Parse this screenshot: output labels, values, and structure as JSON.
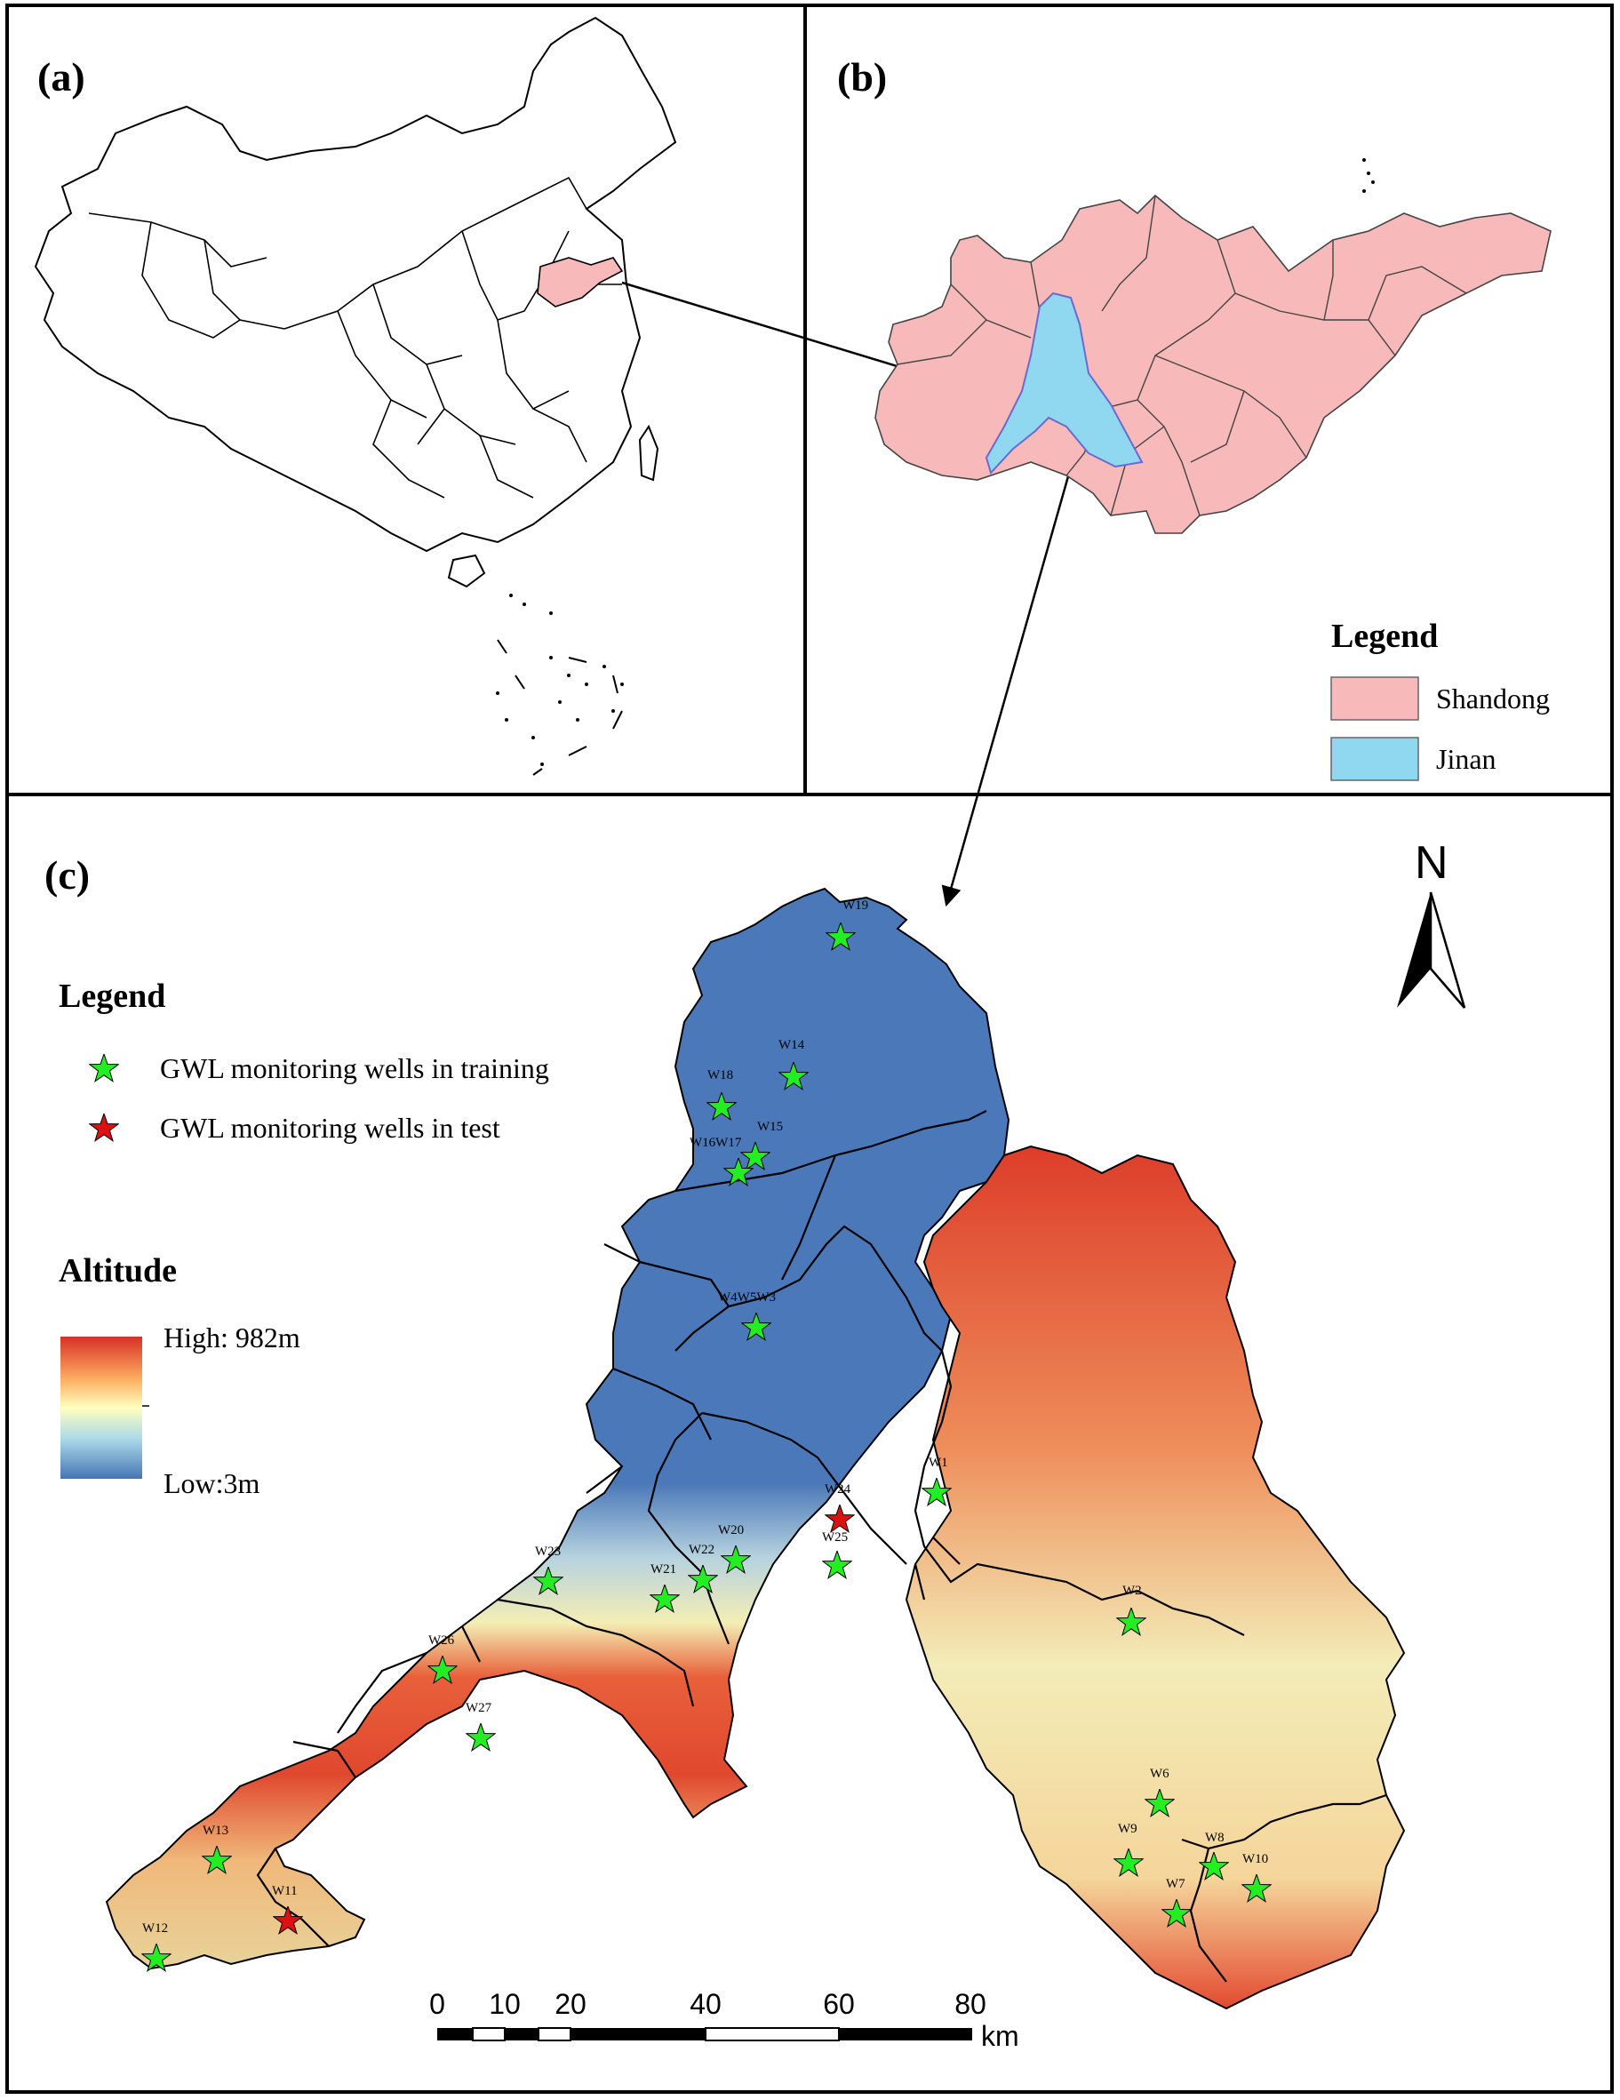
{
  "panels": {
    "a": {
      "label": "(a)"
    },
    "b": {
      "label": "(b)"
    },
    "c": {
      "label": "(c)"
    }
  },
  "legend_b": {
    "title": "Legend",
    "items": [
      {
        "label": "Shandong",
        "color": "#f7b9b9"
      },
      {
        "label": "Jinan",
        "color": "#8fd8f0"
      }
    ]
  },
  "legend_c": {
    "title": "Legend",
    "items": [
      {
        "label": "GWL monitoring wells in training",
        "color": "#22ee22"
      },
      {
        "label": "GWL monitoring wells  in test",
        "color": "#dd1111"
      }
    ]
  },
  "altitude": {
    "title": "Altitude",
    "high_label": "High: 982m",
    "low_label": "Low:3m",
    "colors": [
      "#d73027",
      "#fee08b",
      "#ffffbf",
      "#abd9e9",
      "#4575b4"
    ]
  },
  "north_arrow": {
    "label": "N"
  },
  "scale_bar": {
    "ticks": [
      "0",
      "10",
      "20",
      "40",
      "60",
      "80"
    ],
    "unit": "km"
  },
  "wells": [
    {
      "id": "W19",
      "label": "W19",
      "type": "training"
    },
    {
      "id": "W14",
      "label": "W14",
      "type": "training"
    },
    {
      "id": "W18",
      "label": "W18",
      "type": "training"
    },
    {
      "id": "W15",
      "label": "W15",
      "type": "training"
    },
    {
      "id": "W16W17",
      "label": "W16W17",
      "type": "training"
    },
    {
      "id": "W4W5W3",
      "label": "W4W5W3",
      "type": "training"
    },
    {
      "id": "W1",
      "label": "W1",
      "type": "training"
    },
    {
      "id": "W24",
      "label": "W24",
      "type": "test"
    },
    {
      "id": "W25",
      "label": "W25",
      "type": "training"
    },
    {
      "id": "W20",
      "label": "W20",
      "type": "training"
    },
    {
      "id": "W22",
      "label": "W22",
      "type": "training"
    },
    {
      "id": "W21",
      "label": "W21",
      "type": "training"
    },
    {
      "id": "W23",
      "label": "W23",
      "type": "training"
    },
    {
      "id": "W26",
      "label": "W26",
      "type": "training"
    },
    {
      "id": "W27",
      "label": "W27",
      "type": "training"
    },
    {
      "id": "W2",
      "label": "W2",
      "type": "training"
    },
    {
      "id": "W6",
      "label": "W6",
      "type": "training"
    },
    {
      "id": "W9",
      "label": "W9",
      "type": "training"
    },
    {
      "id": "W8",
      "label": "W8",
      "type": "training"
    },
    {
      "id": "W10",
      "label": "W10",
      "type": "training"
    },
    {
      "id": "W7",
      "label": "W7",
      "type": "training"
    },
    {
      "id": "W13",
      "label": "W13",
      "type": "training"
    },
    {
      "id": "W11",
      "label": "W11",
      "type": "test"
    },
    {
      "id": "W12",
      "label": "W12",
      "type": "training"
    }
  ]
}
